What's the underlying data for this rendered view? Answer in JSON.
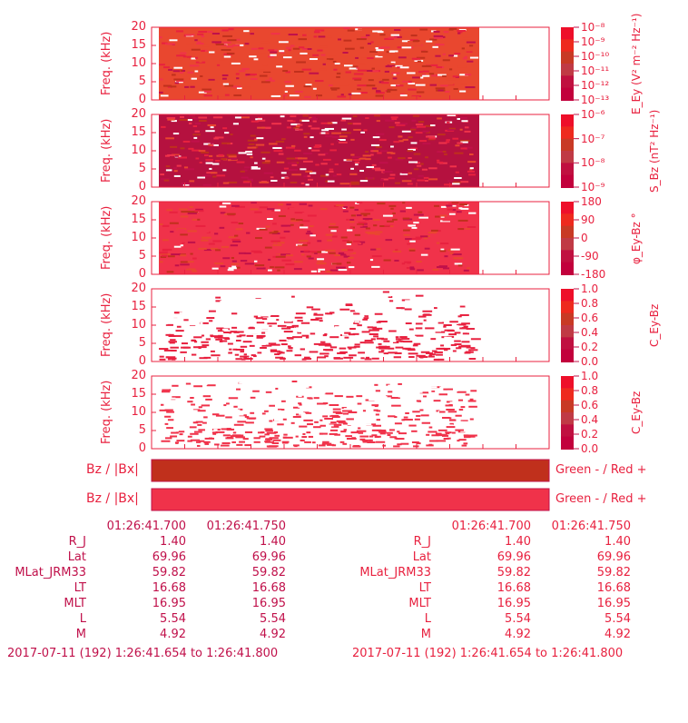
{
  "panels": [
    {
      "ylabel": "Freq. (kHz)",
      "yticks": [
        "20",
        "15",
        "10",
        "5",
        "0"
      ],
      "colorbar_label": "E_Ey (V² m⁻² Hz⁻¹)",
      "colorbar_ticks": [
        "10⁻⁸",
        "10⁻⁹",
        "10⁻¹⁰",
        "10⁻¹¹",
        "10⁻¹²",
        "10⁻¹³"
      ],
      "base": "#e8213f",
      "bg": "#e9472f"
    },
    {
      "ylabel": "Freq. (kHz)",
      "yticks": [
        "20",
        "15",
        "10",
        "5",
        "0"
      ],
      "colorbar_label": "S_Bz (nT² Hz⁻¹)",
      "colorbar_ticks": [
        "10⁻⁶",
        "10⁻⁷",
        "10⁻⁸",
        "10⁻⁹"
      ],
      "base": "#c0104a",
      "bg": "#b5113f"
    },
    {
      "ylabel": "Freq. (kHz)",
      "yticks": [
        "20",
        "15",
        "10",
        "5",
        "0"
      ],
      "colorbar_label": "φ_Ey-Bz °",
      "colorbar_ticks": [
        "180",
        "90",
        "0",
        "-90",
        "-180"
      ],
      "base": "#f0324a",
      "bg": "#f0324a"
    },
    {
      "ylabel": "Freq. (kHz)",
      "yticks": [
        "20",
        "15",
        "10",
        "5",
        "0"
      ],
      "colorbar_label": "C_Ey-Bz",
      "colorbar_ticks": [
        "1.0",
        "0.8",
        "0.6",
        "0.4",
        "0.2",
        "0.0"
      ],
      "base": "#e8213f",
      "bg": "#ffffff"
    },
    {
      "ylabel": "Freq. (kHz)",
      "yticks": [
        "20",
        "15",
        "10",
        "5",
        "0"
      ],
      "colorbar_label": "C_Ey-Bz",
      "colorbar_ticks": [
        "1.0",
        "0.8",
        "0.6",
        "0.4",
        "0.2",
        "0.0"
      ],
      "base": "#f0324a",
      "bg": "#ffffff"
    }
  ],
  "ratio_bars": [
    {
      "label": "Bz / |Bx|",
      "legend": "Green - / Red +",
      "color": "#c0301c"
    },
    {
      "label": "Bz / |Bx|",
      "legend": "Green - / Red +",
      "color": "#f0324a"
    }
  ],
  "chart_data": {
    "type": "heatmap",
    "xlabel": "",
    "ylabel": "Freq. (kHz)",
    "ylim": [
      0,
      20
    ],
    "x_tick_labels": [
      "01:26:41.700",
      "01:26:41.750"
    ],
    "time_range": "2017-07-11 (192) 1:26:41.654 to 1:26:41.800"
  },
  "ephemeris": {
    "rows": [
      {
        "label": "R_J",
        "values": [
          "1.40",
          "1.40"
        ]
      },
      {
        "label": "Lat",
        "values": [
          "69.96",
          "69.96"
        ]
      },
      {
        "label": "MLat_JRM33",
        "values": [
          "59.82",
          "59.82"
        ]
      },
      {
        "label": "LT",
        "values": [
          "16.68",
          "16.68"
        ]
      },
      {
        "label": "MLT",
        "values": [
          "16.95",
          "16.95"
        ]
      },
      {
        "label": "L",
        "values": [
          "5.54",
          "5.54"
        ]
      },
      {
        "label": "M",
        "values": [
          "4.92",
          "4.92"
        ]
      }
    ],
    "times": [
      "01:26:41.700",
      "01:26:41.750"
    ],
    "date": "2017-07-11 (192) 1:26:41.654 to 1:26:41.800"
  },
  "colors": {
    "accent": "#e8213f",
    "dark": "#c0104a",
    "brown": "#c0301c"
  }
}
